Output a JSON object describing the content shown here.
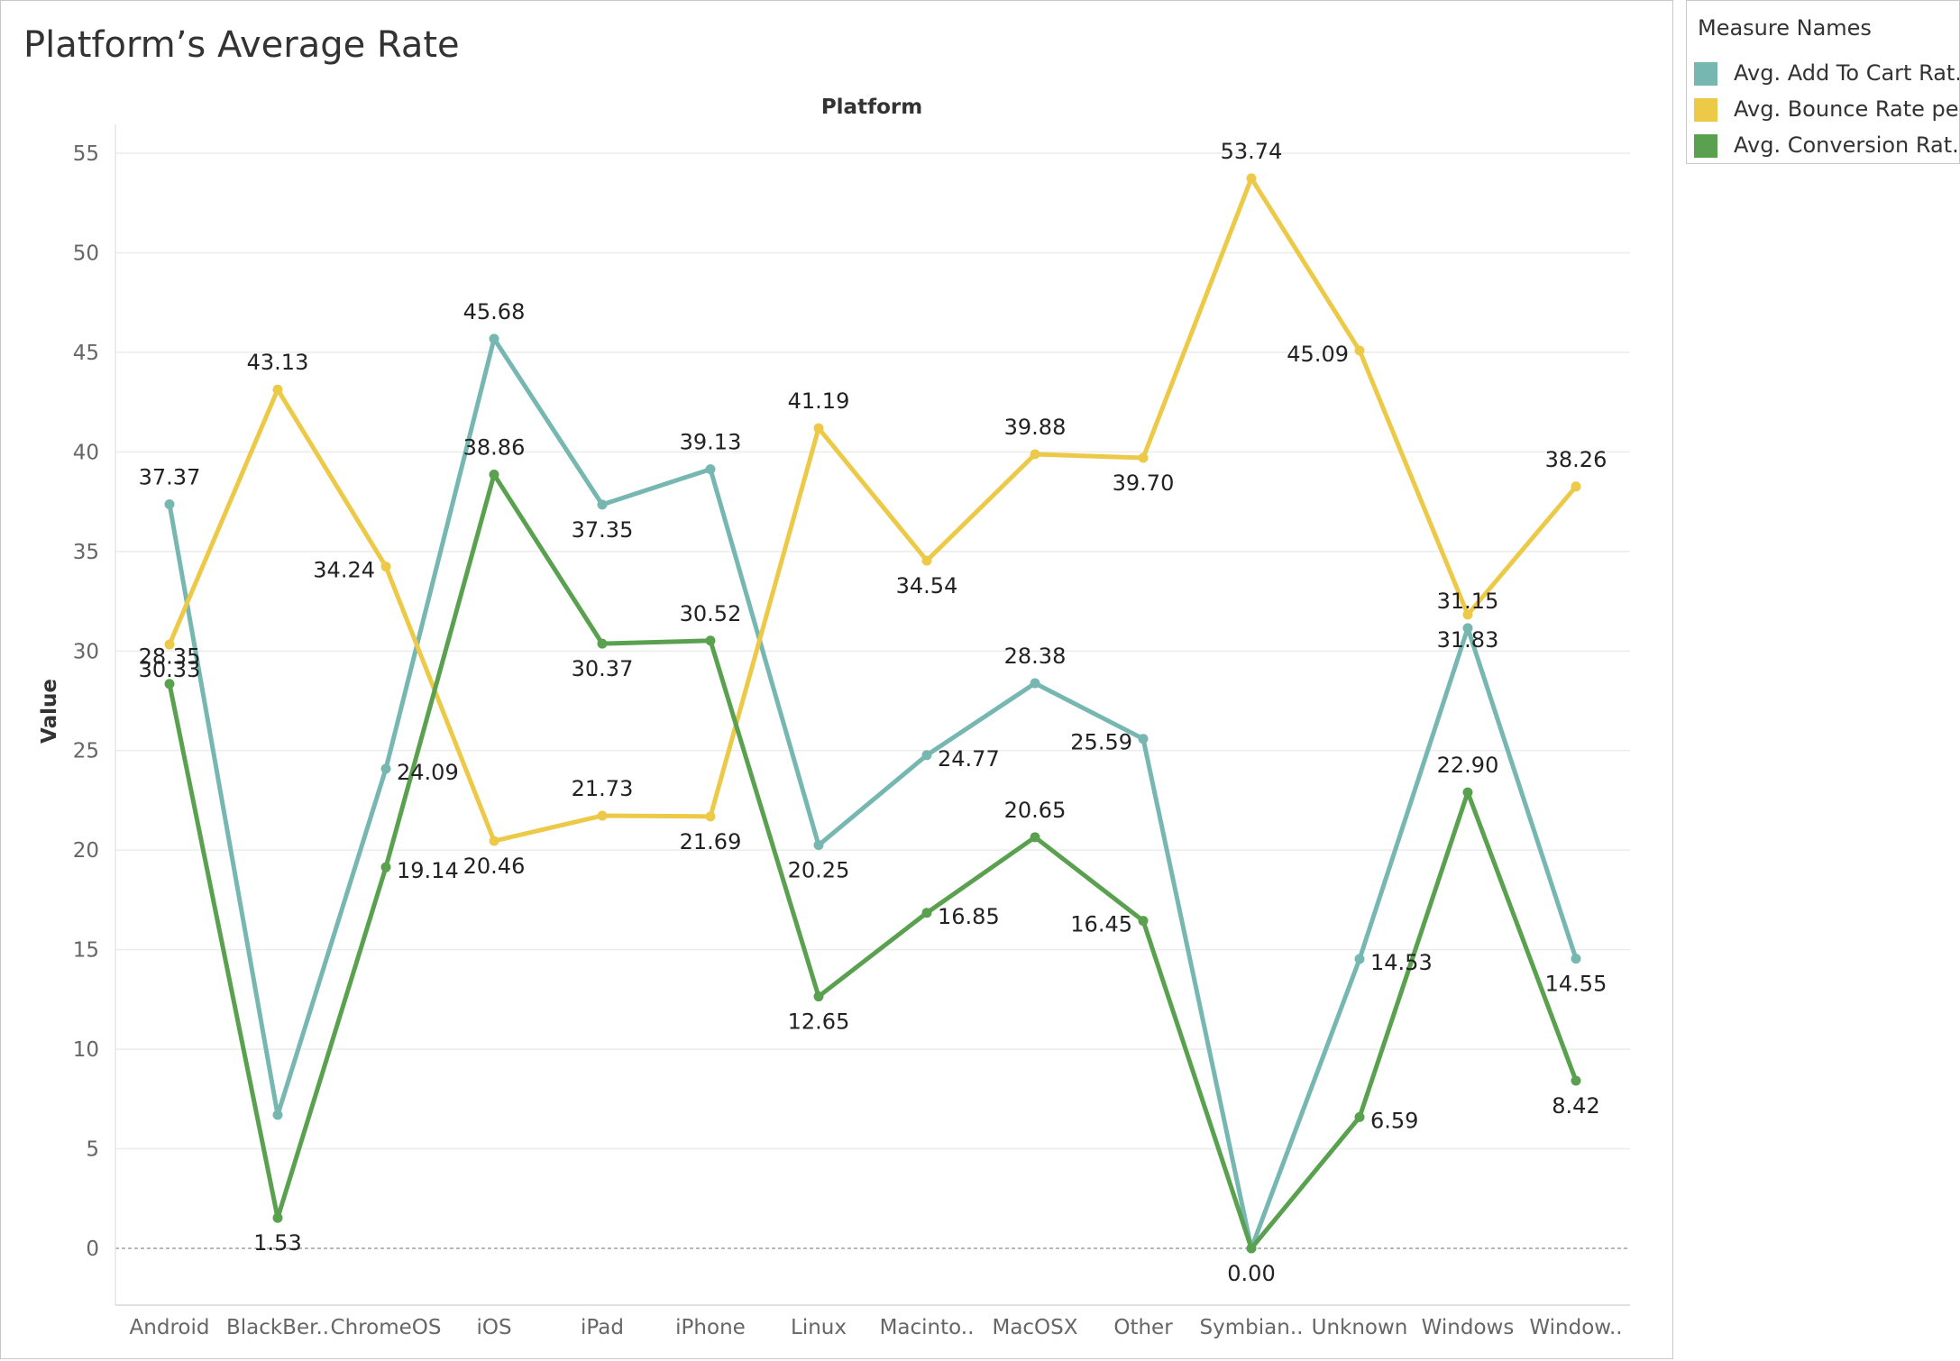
{
  "chart_data": {
    "type": "line",
    "title": "Platform’s Average Rate",
    "xlabel": "Platform",
    "ylabel": "Value",
    "ylim": [
      0,
      55
    ],
    "yticks": [
      0,
      5,
      10,
      15,
      20,
      25,
      30,
      35,
      40,
      45,
      50,
      55
    ],
    "categories": [
      "Android",
      "BlackBer..",
      "ChromeOS",
      "iOS",
      "iPad",
      "iPhone",
      "Linux",
      "Macinto..",
      "MacOSX",
      "Other",
      "Symbian..",
      "Unknown",
      "Windows",
      "Window.."
    ],
    "series": [
      {
        "name": "Avg. Add To Cart Rat..",
        "color": "#76b7b2",
        "values": [
          37.37,
          6.7,
          24.09,
          45.68,
          37.35,
          39.13,
          20.25,
          24.77,
          28.38,
          25.59,
          0.0,
          14.53,
          31.15,
          14.55
        ],
        "labels": [
          "37.37",
          "",
          "24.09",
          "45.68",
          "37.35",
          "39.13",
          "20.25",
          "24.77",
          "28.38",
          "25.59",
          "",
          "14.53",
          "31.15",
          "14.55"
        ]
      },
      {
        "name": "Avg. Bounce Rate pe..",
        "color": "#edc948",
        "values": [
          30.33,
          43.13,
          34.24,
          20.46,
          21.73,
          21.69,
          41.19,
          34.54,
          39.88,
          39.7,
          53.74,
          45.09,
          31.83,
          38.26
        ],
        "labels": [
          "30.33",
          "43.13",
          "34.24",
          "20.46",
          "21.73",
          "21.69",
          "41.19",
          "34.54",
          "39.88",
          "39.70",
          "53.74",
          "45.09",
          "31.83",
          "38.26"
        ]
      },
      {
        "name": "Avg. Conversion Rat..",
        "color": "#59a14f",
        "values": [
          28.35,
          1.53,
          19.14,
          38.86,
          30.37,
          30.52,
          12.65,
          16.85,
          20.65,
          16.45,
          0.0,
          6.59,
          22.9,
          8.42
        ],
        "labels": [
          "28.35",
          "1.53",
          "19.14",
          "38.86",
          "30.37",
          "30.52",
          "12.65",
          "16.85",
          "20.65",
          "16.45",
          "0.00",
          "6.59",
          "22.90",
          "8.42"
        ]
      }
    ],
    "legend": {
      "title": "Measure Names",
      "position": "right"
    },
    "grid": true
  }
}
